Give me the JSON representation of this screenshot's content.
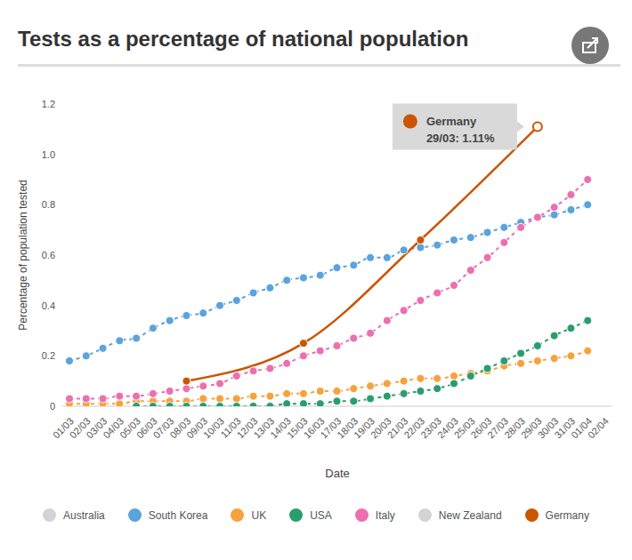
{
  "chart_data": {
    "type": "line",
    "title": "Tests as a percentage of national population",
    "x_label": "Date",
    "y_label": "Percentage of population tested",
    "x": [
      "01/03",
      "02/03",
      "03/03",
      "04/03",
      "05/03",
      "06/03",
      "07/03",
      "08/03",
      "09/03",
      "10/03",
      "11/03",
      "12/03",
      "13/03",
      "14/03",
      "15/03",
      "16/03",
      "17/03",
      "18/03",
      "19/03",
      "20/03",
      "21/03",
      "22/03",
      "23/03",
      "24/03",
      "25/03",
      "26/03",
      "27/03",
      "28/03",
      "29/03",
      "30/03",
      "31/03",
      "01/04",
      "02/04"
    ],
    "ylim": [
      0,
      1.2
    ],
    "yticks": [
      0,
      0.2,
      0.4,
      0.6,
      0.8,
      {
        "value": 1,
        "label": "1.0"
      },
      1.2
    ],
    "grid": false,
    "legend": "bottom",
    "marker": "circle",
    "series": [
      {
        "name": "Australia",
        "color": "#d3d3d3",
        "line_style": "dashed",
        "values": [
          null,
          null,
          null,
          null,
          null,
          null,
          null,
          null,
          null,
          null,
          null,
          null,
          null,
          null,
          null,
          null,
          null,
          null,
          null,
          null,
          null,
          null,
          null,
          null,
          null,
          null,
          null,
          null,
          null,
          null,
          null,
          null,
          null
        ]
      },
      {
        "name": "South Korea",
        "color": "#5aa3dc",
        "line_style": "dashed",
        "values": [
          0.18,
          0.2,
          0.23,
          0.26,
          0.27,
          0.31,
          0.34,
          0.36,
          0.37,
          0.4,
          0.42,
          0.45,
          0.47,
          0.5,
          0.51,
          0.52,
          0.55,
          0.56,
          0.59,
          0.59,
          0.62,
          0.63,
          0.64,
          0.66,
          0.67,
          0.69,
          0.71,
          0.73,
          0.75,
          0.76,
          0.78,
          0.8,
          null
        ]
      },
      {
        "name": "UK",
        "color": "#f7a23e",
        "line_style": "dashed",
        "values": [
          0.01,
          0.01,
          0.01,
          0.01,
          0.02,
          0.02,
          0.02,
          0.02,
          0.03,
          0.03,
          0.03,
          0.04,
          0.04,
          0.05,
          0.05,
          0.06,
          0.06,
          0.07,
          0.08,
          0.09,
          0.1,
          0.11,
          0.11,
          0.12,
          0.13,
          0.14,
          0.16,
          0.17,
          0.18,
          0.19,
          0.2,
          0.22,
          null
        ]
      },
      {
        "name": "USA",
        "color": "#2a9d6e",
        "line_style": "dashed",
        "values": [
          null,
          null,
          null,
          null,
          0,
          0,
          0,
          0,
          0,
          0,
          0,
          0,
          0,
          0.01,
          0.01,
          0.01,
          0.02,
          0.02,
          0.03,
          0.04,
          0.05,
          0.06,
          0.07,
          0.09,
          0.12,
          0.15,
          0.18,
          0.21,
          0.24,
          0.28,
          0.31,
          0.34,
          null
        ]
      },
      {
        "name": "Italy",
        "color": "#ec6fb0",
        "line_style": "dashed",
        "values": [
          0.03,
          0.03,
          0.03,
          0.04,
          0.04,
          0.05,
          0.06,
          0.07,
          0.08,
          0.09,
          0.12,
          0.14,
          0.15,
          0.17,
          0.2,
          0.22,
          0.24,
          0.27,
          0.29,
          0.34,
          0.38,
          0.42,
          0.45,
          0.48,
          0.54,
          0.59,
          0.65,
          0.71,
          0.75,
          0.79,
          0.84,
          0.9,
          null
        ]
      },
      {
        "name": "New Zealand",
        "color": "#d3d3d3",
        "line_style": "dashed",
        "values": [
          null,
          null,
          null,
          null,
          null,
          null,
          null,
          null,
          null,
          null,
          null,
          null,
          null,
          null,
          null,
          null,
          null,
          null,
          null,
          null,
          null,
          null,
          null,
          null,
          null,
          null,
          null,
          null,
          null,
          null,
          null,
          null,
          null
        ]
      },
      {
        "name": "Germany",
        "color": "#cc5500",
        "line_style": "solid",
        "values": [
          null,
          null,
          null,
          null,
          null,
          null,
          null,
          0.1,
          null,
          null,
          null,
          null,
          null,
          null,
          0.25,
          null,
          null,
          null,
          null,
          null,
          null,
          0.66,
          null,
          null,
          null,
          null,
          null,
          null,
          1.11,
          null,
          null,
          null,
          null
        ]
      }
    ],
    "annotation": {
      "series": "Germany",
      "x": "29/03",
      "text": "29/03: 1.11%"
    }
  }
}
